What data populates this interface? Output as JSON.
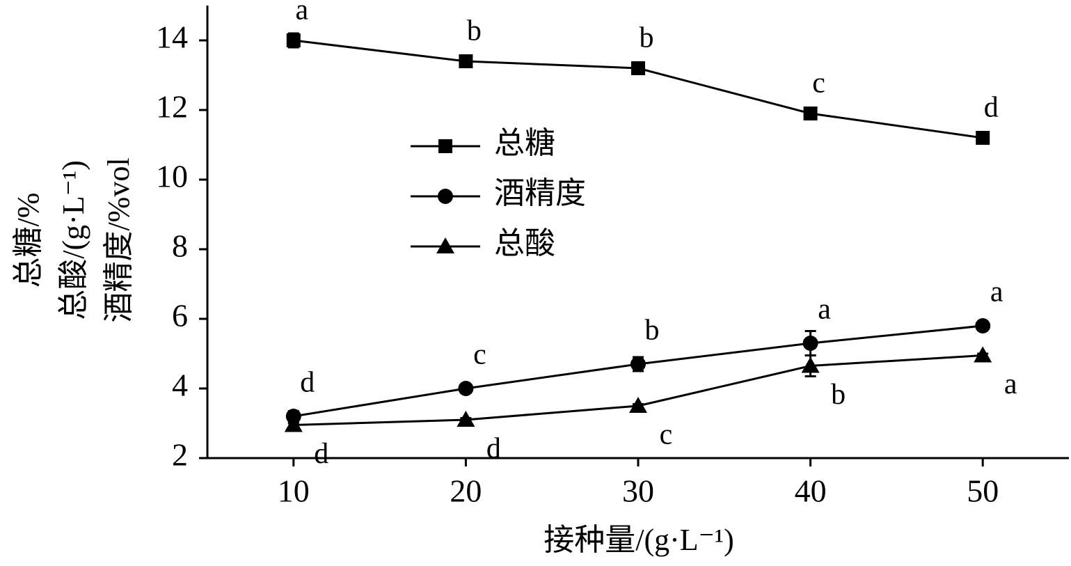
{
  "chart_data": {
    "type": "line",
    "x_label": "接种量/(g·L⁻¹)",
    "y_label": [
      "总糖/%",
      "总酸/(g·L⁻¹)",
      "酒精度/%vol"
    ],
    "x": [
      10,
      20,
      30,
      40,
      50
    ],
    "xlim": [
      5,
      55
    ],
    "xticks": [
      10,
      20,
      30,
      40,
      50
    ],
    "ylim": [
      2,
      15
    ],
    "yticks": [
      2,
      4,
      6,
      8,
      10,
      12,
      14
    ],
    "grid": false,
    "legend": "center-left",
    "series": [
      {
        "name": "总糖",
        "color": "#000000",
        "marker": "square",
        "values": [
          14.0,
          13.4,
          13.2,
          11.9,
          11.2
        ],
        "errors": [
          0.2,
          0.1,
          0.15,
          0.1,
          0.1
        ],
        "labels": [
          "a",
          "b",
          "b",
          "c",
          "d"
        ]
      },
      {
        "name": "酒精度",
        "color": "#000000",
        "marker": "circle",
        "values": [
          3.2,
          4.0,
          4.7,
          5.3,
          5.8
        ],
        "errors": [
          0.15,
          0.1,
          0.2,
          0.35,
          0.1
        ],
        "labels": [
          "d",
          "c",
          "b",
          "a",
          "a"
        ]
      },
      {
        "name": "总酸",
        "color": "#000000",
        "marker": "triangle",
        "values": [
          2.95,
          3.1,
          3.5,
          4.65,
          4.95
        ],
        "errors": [
          0.05,
          0.05,
          0.05,
          0.3,
          0.05
        ],
        "labels": [
          "d",
          "d",
          "c",
          "b",
          "a"
        ]
      }
    ]
  }
}
